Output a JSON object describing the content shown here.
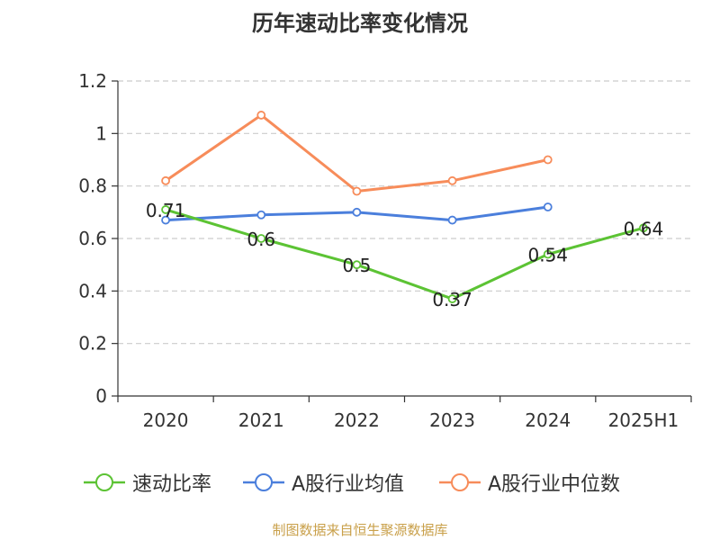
{
  "chart_data": {
    "type": "line",
    "title": "历年速动比率变化情况",
    "categories": [
      "2020",
      "2021",
      "2022",
      "2023",
      "2024",
      "2025H1"
    ],
    "ylim": [
      0,
      1.2
    ],
    "yticks": [
      "0",
      "0.2",
      "0.4",
      "0.6",
      "0.8",
      "1",
      "1.2"
    ],
    "grid": true,
    "legend_position": "bottom",
    "series": [
      {
        "name": "速动比率",
        "color": "#5cc334",
        "values": [
          0.71,
          0.6,
          0.5,
          0.37,
          0.54,
          0.64
        ],
        "labels": [
          "0.71",
          "0.6",
          "0.5",
          "0.37",
          "0.54",
          "0.64"
        ]
      },
      {
        "name": "A股行业均值",
        "color": "#4b7fdc",
        "values": [
          0.67,
          0.69,
          0.7,
          0.67,
          0.72,
          null
        ]
      },
      {
        "name": "A股行业中位数",
        "color": "#f78c5a",
        "values": [
          0.82,
          1.07,
          0.78,
          0.82,
          0.9,
          null
        ]
      }
    ]
  },
  "source": "制图数据来自恒生聚源数据库"
}
